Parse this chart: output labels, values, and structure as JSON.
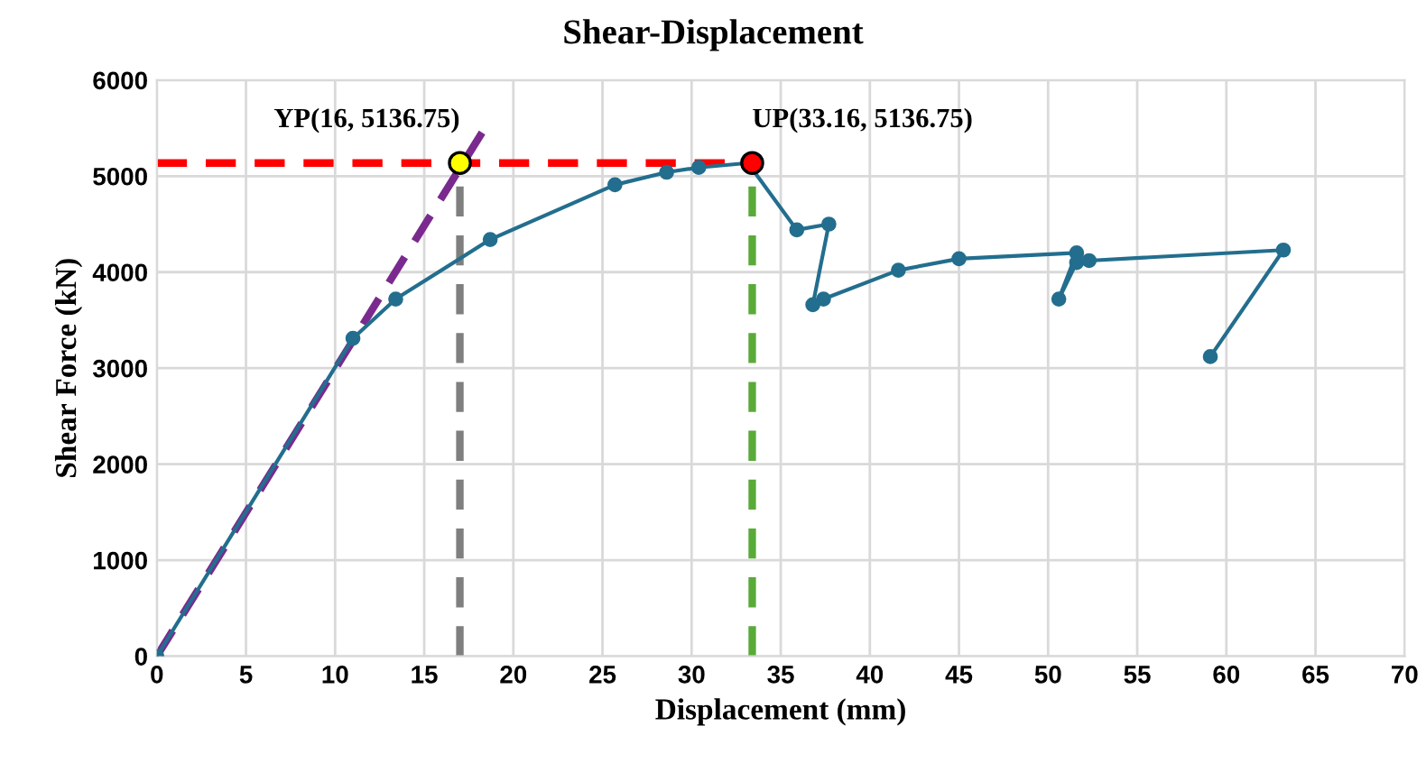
{
  "chart_data": {
    "type": "line",
    "title": "Shear-Displacement",
    "xlabel": "Displacement (mm)",
    "ylabel": "Shear Force (kN)",
    "xlim": [
      0,
      70
    ],
    "xticks": [
      0,
      5,
      10,
      15,
      20,
      25,
      30,
      35,
      40,
      45,
      50,
      55,
      60,
      65,
      70
    ],
    "ylim": [
      0,
      6000
    ],
    "yticks": [
      0,
      1000,
      2000,
      3000,
      4000,
      5000,
      6000
    ],
    "grid": true,
    "series": [
      {
        "type": "line",
        "color": "#7a2a8e",
        "line_style": "dashed",
        "marker": "none",
        "x": [
          0,
          18.3
        ],
        "values": [
          0,
          5470
        ]
      },
      {
        "type": "line",
        "color": "#ff0000",
        "line_style": "dashed",
        "marker": "none",
        "x": [
          0,
          33.16
        ],
        "values": [
          5136.75,
          5136.75
        ]
      },
      {
        "type": "line",
        "color": "#7f7f7f",
        "line_style": "dashed",
        "marker": "none",
        "x": [
          17,
          17
        ],
        "values": [
          0,
          5136.75
        ]
      },
      {
        "type": "line",
        "color": "#5aaa3a",
        "line_style": "dashed",
        "marker": "none",
        "x": [
          33.4,
          33.4
        ],
        "values": [
          0,
          5136.75
        ]
      },
      {
        "color": "#236e8e",
        "line_style": "solid",
        "marker": "circle",
        "x": [
          0,
          11,
          13.4,
          18.7,
          25.7,
          28.6,
          30.4,
          33.16,
          35.9,
          37.7,
          36.8,
          37.4,
          41.6,
          45,
          51.6,
          50.6,
          51.6,
          52.3,
          63.2,
          59.1
        ],
        "values": [
          0,
          3310,
          3720,
          4340,
          4910,
          5040,
          5090,
          5136.75,
          4440,
          4500,
          3660,
          3720,
          4020,
          4140,
          4200,
          3720,
          4100,
          4120,
          4230,
          3120
        ]
      },
      {
        "type": "scatter",
        "color": "#ffff00",
        "marker": "circle",
        "x": [
          17
        ],
        "values": [
          5136.75
        ]
      },
      {
        "type": "scatter",
        "color": "#ff0000",
        "marker": "circle",
        "x": [
          33.4
        ],
        "values": [
          5136.75
        ]
      }
    ],
    "annotations": [
      {
        "text": "YP(16, 5136.75)",
        "x": 17,
        "y": 5136.75
      },
      {
        "text": "UP(33.16, 5136.75)",
        "x": 33.4,
        "y": 5136.75
      }
    ]
  }
}
